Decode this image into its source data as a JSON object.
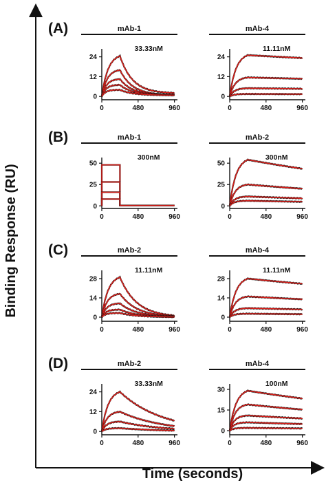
{
  "figure": {
    "ylabel": "Binding Response (RU)",
    "xlabel": "Time (seconds)"
  },
  "chart_data": [
    {
      "type": "line",
      "panel": "(A)",
      "title": "mAb-1",
      "annotation": "33.33nM",
      "xticks": [
        0,
        480,
        960
      ],
      "yticks": [
        0,
        12,
        24
      ],
      "xlim": [
        0,
        1000
      ],
      "ylim": [
        -2,
        28
      ],
      "assoc_end": 240,
      "kind": "exp",
      "peaks": [
        24.5,
        16,
        10.5,
        7,
        4
      ],
      "koff": 0.006,
      "settle": 1.8,
      "series_color": "#d7201b"
    },
    {
      "type": "line",
      "panel": "(A)",
      "title": "mAb-4",
      "annotation": "11.11nM",
      "xticks": [
        0,
        480,
        960
      ],
      "yticks": [
        0,
        12,
        24
      ],
      "xlim": [
        0,
        1000
      ],
      "ylim": [
        -2,
        28
      ],
      "assoc_end": 240,
      "kind": "exp",
      "peaks": [
        25,
        11.5,
        5,
        1.5
      ],
      "koff": 0.0001,
      "settle": 0,
      "series_color": "#d7201b"
    },
    {
      "type": "line",
      "panel": "(B)",
      "title": "mAb-1",
      "annotation": "300nM",
      "xticks": [
        0,
        480,
        960
      ],
      "yticks": [
        0,
        25,
        50
      ],
      "xlim": [
        0,
        1000
      ],
      "ylim": [
        -3,
        55
      ],
      "assoc_end": 240,
      "kind": "square",
      "peaks": [
        48,
        28,
        16,
        8
      ],
      "koff": 0,
      "settle": 0,
      "series_color": "#d7201b"
    },
    {
      "type": "line",
      "panel": "(B)",
      "title": "mAb-2",
      "annotation": "300nM",
      "xticks": [
        0,
        480,
        960
      ],
      "yticks": [
        0,
        25,
        50
      ],
      "xlim": [
        0,
        1000
      ],
      "ylim": [
        -3,
        55
      ],
      "assoc_end": 240,
      "kind": "exp",
      "peaks": [
        54,
        25,
        11,
        6
      ],
      "koff": 0.0003,
      "settle": 0,
      "series_color": "#d7201b"
    },
    {
      "type": "line",
      "panel": "(C)",
      "title": "mAb-2",
      "annotation": "11.11nM",
      "xticks": [
        0,
        480,
        960
      ],
      "yticks": [
        0,
        14,
        28
      ],
      "xlim": [
        0,
        1000
      ],
      "ylim": [
        -3,
        33
      ],
      "assoc_end": 240,
      "kind": "exp",
      "peaks": [
        29,
        17,
        10,
        5.5,
        3
      ],
      "koff": 0.0045,
      "settle": 0,
      "series_color": "#d7201b"
    },
    {
      "type": "line",
      "panel": "(C)",
      "title": "mAb-4",
      "annotation": "11.11nM",
      "xticks": [
        0,
        480,
        960
      ],
      "yticks": [
        0,
        14,
        28
      ],
      "xlim": [
        0,
        1000
      ],
      "ylim": [
        -3,
        33
      ],
      "assoc_end": 240,
      "kind": "exp",
      "peaks": [
        28,
        15,
        6.5,
        2.5
      ],
      "koff": 0.0002,
      "settle": 0,
      "series_color": "#d7201b"
    },
    {
      "type": "line",
      "panel": "(D)",
      "title": "mAb-2",
      "annotation": "33.33nM",
      "xticks": [
        0,
        480,
        960
      ],
      "yticks": [
        0,
        12,
        24
      ],
      "xlim": [
        0,
        1000
      ],
      "ylim": [
        -2,
        28
      ],
      "assoc_end": 240,
      "kind": "exp",
      "peaks": [
        24,
        12,
        6,
        2
      ],
      "koff": 0.0018,
      "settle": 0,
      "series_color": "#d7201b"
    },
    {
      "type": "line",
      "panel": "(D)",
      "title": "mAb-4",
      "annotation": "100nM",
      "xticks": [
        0,
        480,
        960
      ],
      "yticks": [
        0,
        15,
        30
      ],
      "xlim": [
        0,
        1000
      ],
      "ylim": [
        -3,
        33
      ],
      "assoc_end": 240,
      "kind": "exp",
      "peaks": [
        29,
        19,
        11,
        6,
        2
      ],
      "koff": 0.0003,
      "settle": 0,
      "series_color": "#d7201b"
    }
  ]
}
